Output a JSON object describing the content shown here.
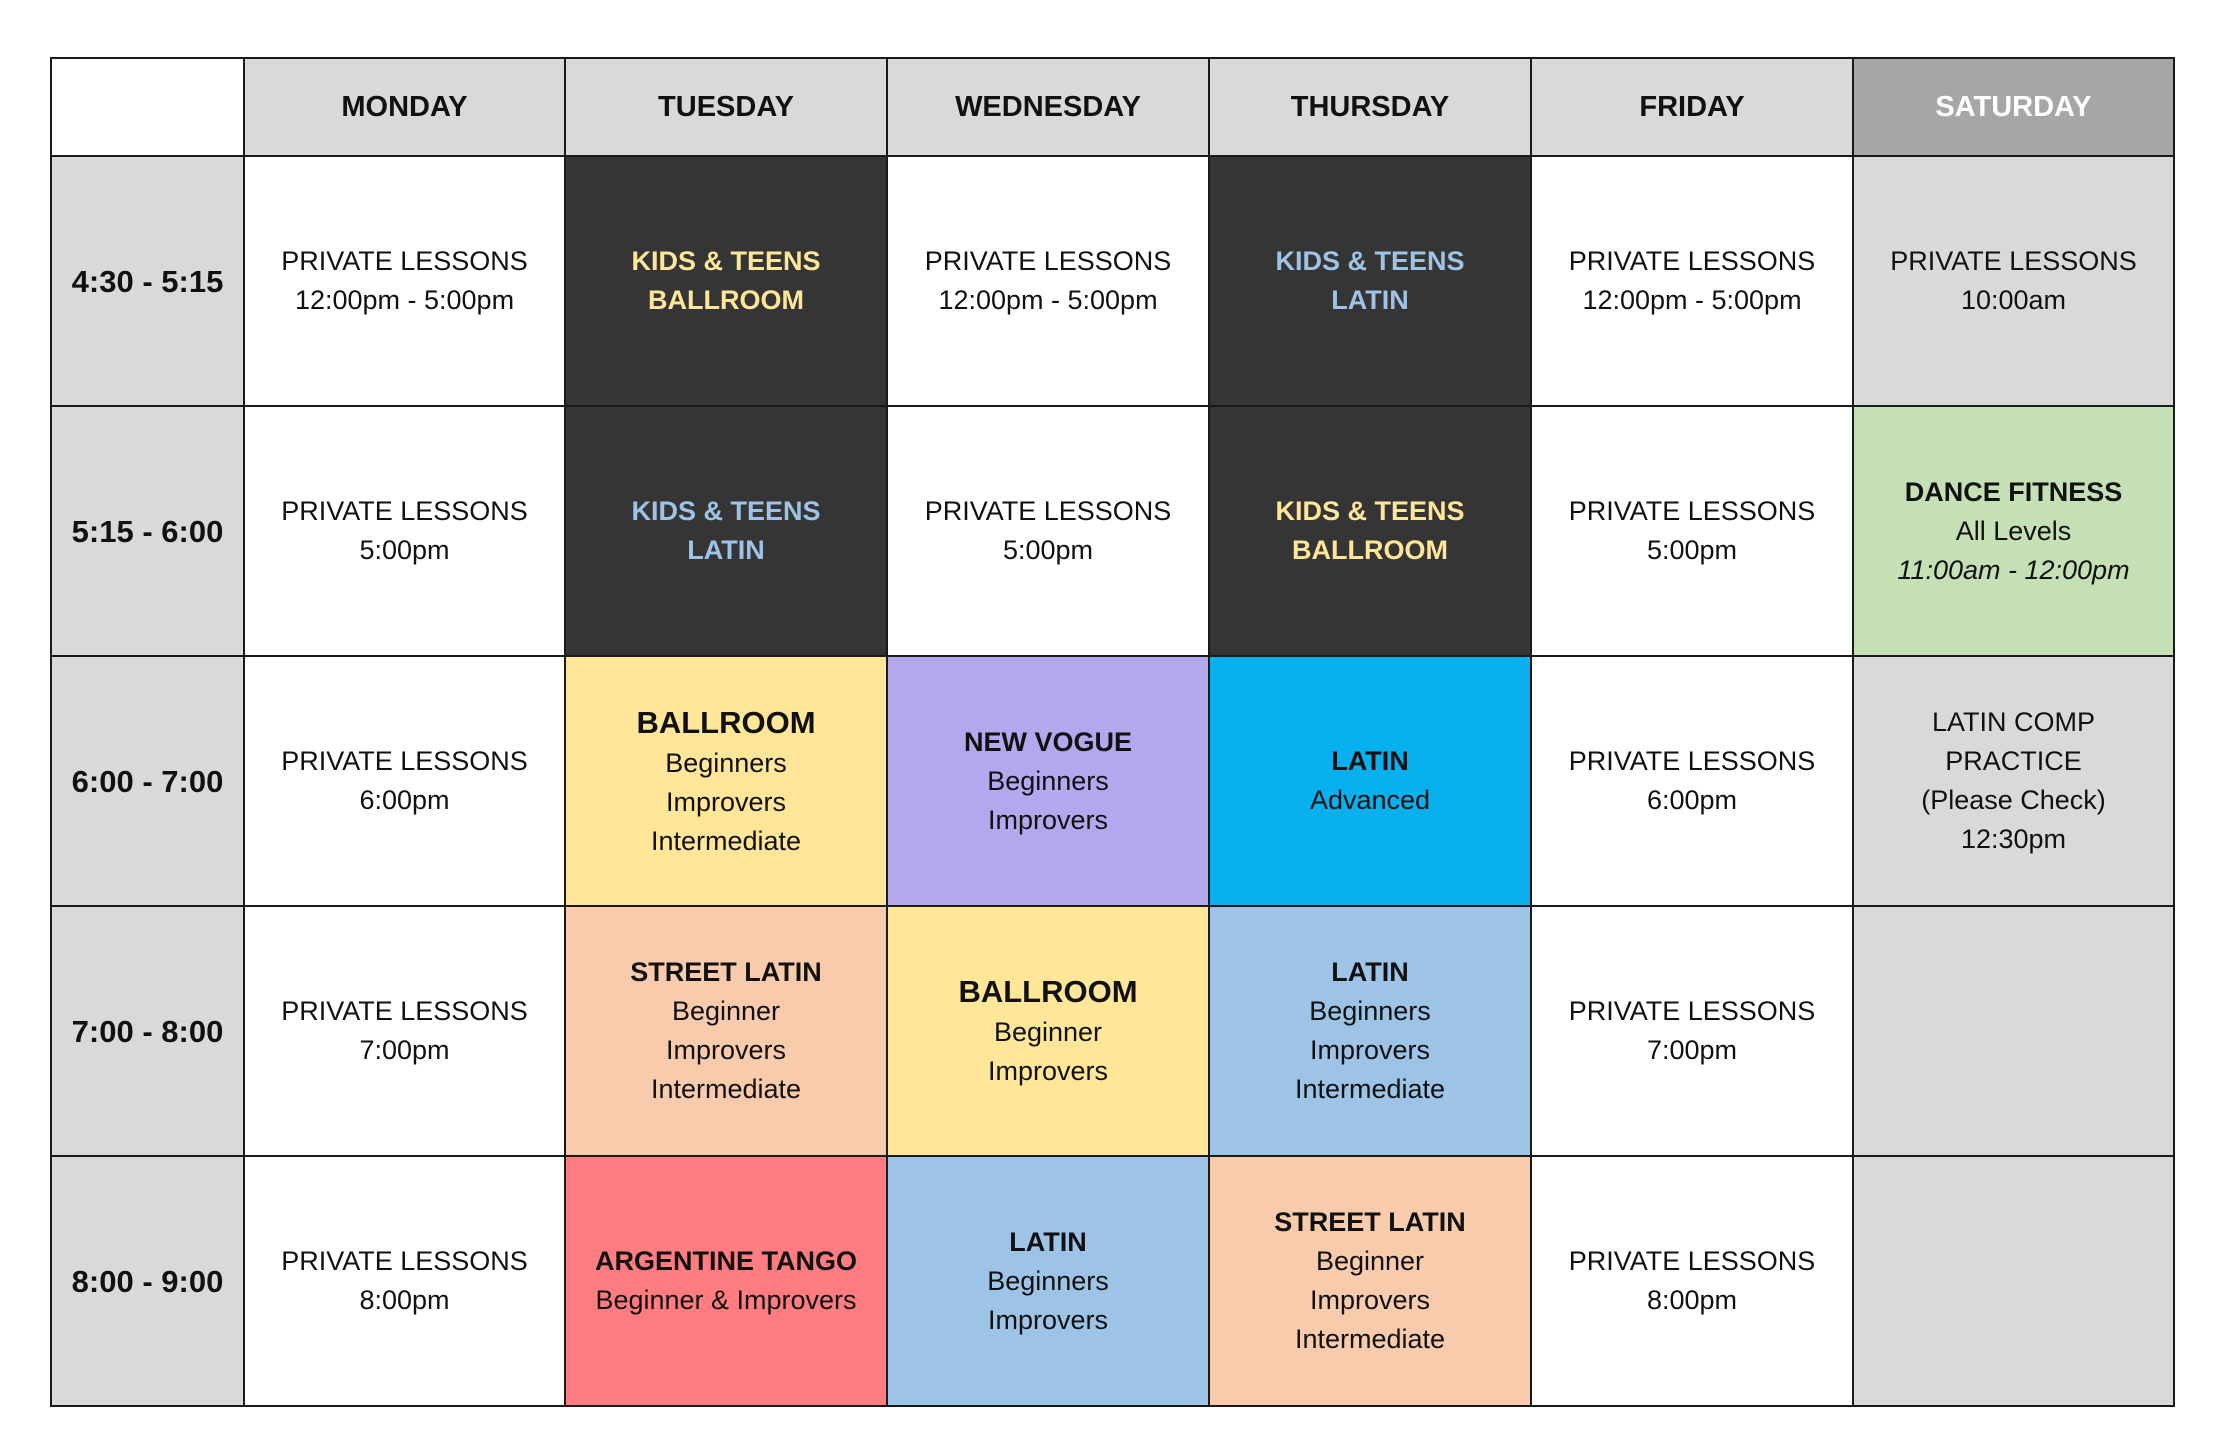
{
  "colors": {
    "header_bg": "#d9d9d9",
    "saturday_header_bg": "#a6a6a6",
    "dark_cell": "#363536",
    "yellow_text": "#ffe699",
    "blue_text": "#9dc3e6",
    "ballroom_yellow": "#ffe699",
    "new_vogue_purple": "#b4a7ee",
    "latin_cyan": "#08b0ee",
    "street_latin_peach": "#f8cbad",
    "latin_blue": "#9dc3e6",
    "argentine_red": "#ff7c80",
    "dance_fitness_green": "#c5e0b4",
    "saturday_gray": "#d9d9d9"
  },
  "days": [
    "MONDAY",
    "TUESDAY",
    "WEDNESDAY",
    "THURSDAY",
    "FRIDAY",
    "SATURDAY"
  ],
  "times": [
    "4:30 - 5:15",
    "5:15 - 6:00",
    "6:00 - 7:00",
    "7:00 - 8:00",
    "8:00 - 9:00"
  ],
  "rows": [
    {
      "cells": [
        {
          "bg": "#ffffff",
          "lines": [
            {
              "text": "PRIVATE LESSONS"
            },
            {
              "text": "12:00pm - 5:00pm"
            }
          ]
        },
        {
          "bg": "#363536",
          "lines": [
            {
              "text": "KIDS & TEENS",
              "bold": true,
              "color": "#ffe699"
            },
            {
              "text": "BALLROOM",
              "bold": true,
              "color": "#ffe699"
            }
          ]
        },
        {
          "bg": "#ffffff",
          "lines": [
            {
              "text": "PRIVATE LESSONS"
            },
            {
              "text": "12:00pm - 5:00pm"
            }
          ]
        },
        {
          "bg": "#363536",
          "lines": [
            {
              "text": "KIDS & TEENS",
              "bold": true,
              "color": "#9dc3e6"
            },
            {
              "text": "LATIN",
              "bold": true,
              "color": "#9dc3e6"
            }
          ]
        },
        {
          "bg": "#ffffff",
          "lines": [
            {
              "text": "PRIVATE LESSONS"
            },
            {
              "text": "12:00pm - 5:00pm"
            }
          ]
        },
        {
          "bg": "#d9d9d9",
          "lines": [
            {
              "text": "PRIVATE LESSONS"
            },
            {
              "text": "10:00am"
            }
          ]
        }
      ]
    },
    {
      "cells": [
        {
          "bg": "#ffffff",
          "lines": [
            {
              "text": "PRIVATE LESSONS"
            },
            {
              "text": "5:00pm"
            }
          ]
        },
        {
          "bg": "#363536",
          "lines": [
            {
              "text": "KIDS & TEENS",
              "bold": true,
              "color": "#9dc3e6"
            },
            {
              "text": "LATIN",
              "bold": true,
              "color": "#9dc3e6"
            }
          ]
        },
        {
          "bg": "#ffffff",
          "lines": [
            {
              "text": "PRIVATE LESSONS"
            },
            {
              "text": "5:00pm"
            }
          ]
        },
        {
          "bg": "#363536",
          "lines": [
            {
              "text": "KIDS & TEENS",
              "bold": true,
              "color": "#ffe699"
            },
            {
              "text": "BALLROOM",
              "bold": true,
              "color": "#ffe699"
            }
          ]
        },
        {
          "bg": "#ffffff",
          "lines": [
            {
              "text": "PRIVATE LESSONS"
            },
            {
              "text": "5:00pm"
            }
          ]
        },
        {
          "bg": "#c5e0b4",
          "lines": [
            {
              "text": "DANCE FITNESS",
              "bold": true
            },
            {
              "text": "All Levels"
            },
            {
              "text": "11:00am - 12:00pm",
              "italic": true
            }
          ]
        }
      ]
    },
    {
      "cells": [
        {
          "bg": "#ffffff",
          "lines": [
            {
              "text": "PRIVATE LESSONS"
            },
            {
              "text": "6:00pm"
            }
          ]
        },
        {
          "bg": "#ffe699",
          "lines": [
            {
              "text": "BALLROOM",
              "bold": true,
              "big": true
            },
            {
              "text": "Beginners"
            },
            {
              "text": "Improvers"
            },
            {
              "text": "Intermediate"
            }
          ]
        },
        {
          "bg": "#b4a7ee",
          "lines": [
            {
              "text": "NEW VOGUE",
              "bold": true
            },
            {
              "text": "Beginners"
            },
            {
              "text": "Improvers"
            }
          ]
        },
        {
          "bg": "#08b0ee",
          "lines": [
            {
              "text": "LATIN",
              "bold": true
            },
            {
              "text": "Advanced"
            }
          ]
        },
        {
          "bg": "#ffffff",
          "lines": [
            {
              "text": "PRIVATE LESSONS"
            },
            {
              "text": "6:00pm"
            }
          ]
        },
        {
          "bg": "#d9d9d9",
          "lines": [
            {
              "text": "LATIN COMP PRACTICE"
            },
            {
              "text": "(Please Check)"
            },
            {
              "text": "12:30pm"
            }
          ]
        }
      ]
    },
    {
      "cells": [
        {
          "bg": "#ffffff",
          "lines": [
            {
              "text": "PRIVATE LESSONS"
            },
            {
              "text": "7:00pm"
            }
          ]
        },
        {
          "bg": "#f8cbad",
          "lines": [
            {
              "text": "STREET LATIN",
              "bold": true
            },
            {
              "text": "Beginner"
            },
            {
              "text": "Improvers"
            },
            {
              "text": "Intermediate"
            }
          ]
        },
        {
          "bg": "#ffe699",
          "lines": [
            {
              "text": "BALLROOM",
              "bold": true,
              "big": true
            },
            {
              "text": "Beginner"
            },
            {
              "text": "Improvers"
            }
          ]
        },
        {
          "bg": "#9dc3e6",
          "lines": [
            {
              "text": "LATIN",
              "bold": true
            },
            {
              "text": "Beginners"
            },
            {
              "text": "Improvers"
            },
            {
              "text": "Intermediate"
            }
          ]
        },
        {
          "bg": "#ffffff",
          "lines": [
            {
              "text": "PRIVATE LESSONS"
            },
            {
              "text": "7:00pm"
            }
          ]
        },
        {
          "bg": "#d9d9d9",
          "lines": []
        }
      ]
    },
    {
      "cells": [
        {
          "bg": "#ffffff",
          "lines": [
            {
              "text": "PRIVATE LESSONS"
            },
            {
              "text": "8:00pm"
            }
          ]
        },
        {
          "bg": "#ff7c80",
          "lines": [
            {
              "text": "ARGENTINE TANGO",
              "bold": true
            },
            {
              "text": "Beginner & Improvers"
            }
          ]
        },
        {
          "bg": "#9dc3e6",
          "lines": [
            {
              "text": "LATIN",
              "bold": true
            },
            {
              "text": "Beginners"
            },
            {
              "text": "Improvers"
            }
          ]
        },
        {
          "bg": "#f8cbad",
          "lines": [
            {
              "text": "STREET LATIN",
              "bold": true
            },
            {
              "text": "Beginner"
            },
            {
              "text": "Improvers"
            },
            {
              "text": "Intermediate"
            }
          ]
        },
        {
          "bg": "#ffffff",
          "lines": [
            {
              "text": "PRIVATE LESSONS"
            },
            {
              "text": "8:00pm"
            }
          ]
        },
        {
          "bg": "#d9d9d9",
          "lines": []
        }
      ]
    }
  ]
}
